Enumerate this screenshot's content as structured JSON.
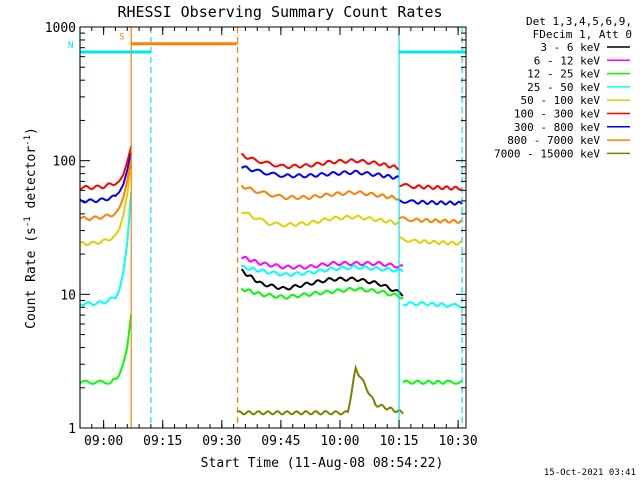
{
  "chart_data": {
    "type": "line",
    "title": "RHESSI Observing Summary Count Rates",
    "xlabel": "Start Time (11-Aug-08 08:54:22)",
    "ylabel_parts": [
      "Count Rate (s",
      "-1",
      " detector",
      "-1",
      ")"
    ],
    "y_scale": "log",
    "ylim": [
      1,
      1000
    ],
    "x_unit": "minutes since 08:54",
    "xlim": [
      0,
      98
    ],
    "x_ticks": [
      {
        "value": 6,
        "label": "09:00"
      },
      {
        "value": 21,
        "label": "09:15"
      },
      {
        "value": 36,
        "label": "09:30"
      },
      {
        "value": 51,
        "label": "09:45"
      },
      {
        "value": 66,
        "label": "10:00"
      },
      {
        "value": 81,
        "label": "10:15"
      },
      {
        "value": 96,
        "label": "10:30"
      }
    ],
    "y_ticks": [
      {
        "value": 1,
        "label": "1"
      },
      {
        "value": 10,
        "label": "10"
      },
      {
        "value": 100,
        "label": "100"
      },
      {
        "value": 1000,
        "label": "1000"
      }
    ],
    "legend_header": [
      "Det 1,3,4,5,6,9,",
      "FDecim 1, Att 0"
    ],
    "legend_placement": "top-right outside",
    "timestamp": "15-Oct-2021 03:41",
    "flags": [
      {
        "label": "S",
        "color": "#ff7f00",
        "start": 13,
        "end": 40,
        "level": 750
      },
      {
        "label": "N",
        "color": "#00e5ee",
        "start": 0,
        "end": 18,
        "level": 650
      },
      {
        "label": "",
        "color": "#00e5ee",
        "start": 81,
        "end": 98,
        "level": 650
      }
    ],
    "markers": [
      {
        "x": 13,
        "color": "#ff7f00",
        "style": "solid"
      },
      {
        "x": 40,
        "color": "#ff7f00",
        "style": "dashed"
      },
      {
        "x": 18,
        "color": "#00e5ee",
        "style": "dashed"
      },
      {
        "x": 81,
        "color": "#00e5ee",
        "style": "solid"
      },
      {
        "x": 97,
        "color": "#00e5ee",
        "style": "dashed"
      },
      {
        "x": 0,
        "color": "#00e5ee",
        "style": "solid"
      }
    ],
    "series": [
      {
        "name": "3 - 6 keV",
        "color": "#000000",
        "segments": [
          {
            "x": [
              41,
              46,
              52,
              58,
              64,
              70,
              76,
              82
            ],
            "y": [
              15,
              12,
              11,
              12,
              13,
              13,
              12,
              10
            ]
          }
        ]
      },
      {
        "name": "6 - 12 keV",
        "color": "#ff00ff",
        "segments": [
          {
            "x": [
              41,
              46,
              52,
              58,
              64,
              70,
              76,
              82
            ],
            "y": [
              19,
              17,
              16,
              16,
              17,
              17,
              17,
              16
            ]
          }
        ]
      },
      {
        "name": "12 - 25 keV",
        "color": "#00ff00",
        "segments": [
          {
            "x": [
              0,
              4,
              8,
              10,
              11,
              12,
              13
            ],
            "y": [
              2.2,
              2.2,
              2.2,
              2.5,
              3,
              4,
              7
            ]
          },
          {
            "x": [
              41,
              46,
              52,
              58,
              64,
              70,
              76,
              82
            ],
            "y": [
              11,
              10,
              9.5,
              10,
              10.5,
              11,
              10.5,
              9.5
            ]
          },
          {
            "x": [
              82,
              88,
              93,
              97
            ],
            "y": [
              2.2,
              2.2,
              2.2,
              2.2
            ]
          }
        ]
      },
      {
        "name": "25 - 50 keV",
        "color": "#00ffff",
        "segments": [
          {
            "x": [
              0,
              3,
              6,
              9,
              10,
              11,
              12,
              13
            ],
            "y": [
              8.5,
              8.5,
              8.7,
              9.5,
              11,
              15,
              25,
              60
            ]
          },
          {
            "x": [
              41,
              46,
              52,
              58,
              64,
              70,
              76,
              82
            ],
            "y": [
              16,
              15,
              14,
              14.5,
              15.5,
              16,
              15.5,
              15
            ]
          },
          {
            "x": [
              82,
              88,
              93,
              97
            ],
            "y": [
              8.5,
              8.5,
              8.3,
              8.2
            ]
          }
        ]
      },
      {
        "name": "50 - 100 keV",
        "color": "#e0d000",
        "segments": [
          {
            "x": [
              0,
              3,
              6,
              9,
              10,
              11,
              12,
              13
            ],
            "y": [
              24,
              24,
              25,
              27,
              30,
              38,
              55,
              90
            ]
          },
          {
            "x": [
              41,
              44,
              48,
              52,
              58,
              64,
              70,
              76,
              81
            ],
            "y": [
              42,
              38,
              34,
              33,
              34,
              37,
              38,
              36,
              34
            ]
          },
          {
            "x": [
              81,
              85,
              90,
              97
            ],
            "y": [
              26,
              25,
              24.5,
              24
            ]
          }
        ]
      },
      {
        "name": "100 - 300 keV",
        "color": "#ff0000",
        "segments": [
          {
            "x": [
              0,
              3,
              6,
              9,
              10,
              11,
              12,
              13
            ],
            "y": [
              63,
              63,
              64,
              68,
              72,
              80,
              100,
              130
            ]
          },
          {
            "x": [
              41,
              44,
              48,
              52,
              58,
              64,
              70,
              76,
              81
            ],
            "y": [
              110,
              102,
              95,
              90,
              92,
              98,
              100,
              95,
              88
            ]
          },
          {
            "x": [
              81,
              85,
              90,
              97
            ],
            "y": [
              66,
              64,
              63,
              62
            ]
          }
        ]
      },
      {
        "name": "300 - 800 keV",
        "color": "#0000ff",
        "segments": [
          {
            "x": [
              0,
              3,
              6,
              9,
              10,
              11,
              12,
              13
            ],
            "y": [
              50,
              50,
              51,
              54,
              58,
              66,
              85,
              115
            ]
          },
          {
            "x": [
              41,
              44,
              48,
              52,
              58,
              64,
              70,
              76,
              81
            ],
            "y": [
              90,
              85,
              80,
              77,
              77,
              80,
              82,
              78,
              74
            ]
          },
          {
            "x": [
              81,
              85,
              90,
              97
            ],
            "y": [
              50,
              49,
              48.5,
              48
            ]
          }
        ]
      },
      {
        "name": "800 - 7000 keV",
        "color": "#ff7f00",
        "segments": [
          {
            "x": [
              0,
              3,
              6,
              9,
              10,
              11,
              12,
              13
            ],
            "y": [
              37,
              37,
              38,
              40,
              44,
              52,
              70,
              100
            ]
          },
          {
            "x": [
              41,
              44,
              48,
              52,
              58,
              64,
              70,
              76,
              81
            ],
            "y": [
              65,
              60,
              56,
              53,
              53,
              56,
              58,
              55,
              52
            ]
          },
          {
            "x": [
              81,
              85,
              90,
              97
            ],
            "y": [
              37,
              36,
              35.5,
              35
            ]
          }
        ]
      },
      {
        "name": "7000 - 15000 keV",
        "color": "#808000",
        "segments": [
          {
            "x": [
              40,
              50,
              60,
              68,
              70,
              75,
              82
            ],
            "y": [
              1.3,
              1.3,
              1.3,
              1.3,
              2.8,
              1.5,
              1.3
            ]
          }
        ]
      }
    ]
  }
}
